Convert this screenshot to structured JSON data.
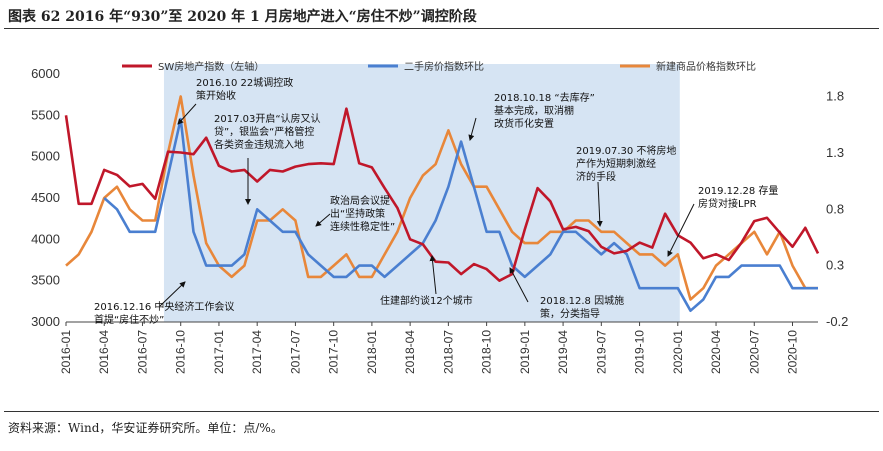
{
  "title": "图表 62 2016 年“930”至 2020 年 1 月房地产进入“房住不炒”调控阶段",
  "footer": "资料来源：Wind，华安证券研究所。单位：点/%。",
  "colors": {
    "sw": "#c0172a",
    "second": "#4a7fd0",
    "new": "#e8873a",
    "shade": "#d6e4f3"
  },
  "chart_data": {
    "type": "line",
    "x": [
      "2016-01",
      "2016-02",
      "2016-03",
      "2016-04",
      "2016-05",
      "2016-06",
      "2016-07",
      "2016-08",
      "2016-09",
      "2016-10",
      "2016-11",
      "2016-12",
      "2017-01",
      "2017-02",
      "2017-03",
      "2017-04",
      "2017-05",
      "2017-06",
      "2017-07",
      "2017-08",
      "2017-09",
      "2017-10",
      "2017-11",
      "2017-12",
      "2018-01",
      "2018-02",
      "2018-03",
      "2018-04",
      "2018-05",
      "2018-06",
      "2018-07",
      "2018-08",
      "2018-09",
      "2018-10",
      "2018-11",
      "2018-12",
      "2019-01",
      "2019-02",
      "2019-03",
      "2019-04",
      "2019-05",
      "2019-06",
      "2019-07",
      "2019-08",
      "2019-09",
      "2019-10",
      "2019-11",
      "2019-12",
      "2020-01",
      "2020-02",
      "2020-03",
      "2020-04",
      "2020-05",
      "2020-06",
      "2020-07",
      "2020-08",
      "2020-09",
      "2020-10",
      "2020-11",
      "2020-12"
    ],
    "x_tick_labels": [
      "2016-01",
      "2016-04",
      "2016-07",
      "2016-10",
      "2017-01",
      "2017-04",
      "2017-07",
      "2017-10",
      "2018-01",
      "2018-04",
      "2018-07",
      "2018-10",
      "2019-01",
      "2019-04",
      "2019-07",
      "2019-10",
      "2020-01",
      "2020-04",
      "2020-07",
      "2020-10"
    ],
    "y_left": {
      "min": 3000,
      "max": 6000,
      "ticks": [
        3000,
        3500,
        4000,
        4500,
        5000,
        5500,
        6000
      ]
    },
    "y_right": {
      "min": -0.2,
      "max": 2.0,
      "ticks": [
        "-0.2",
        "0.3",
        "0.8",
        "1.3",
        "1.8"
      ]
    },
    "shaded_period": [
      "2016-09",
      "2020-01"
    ],
    "legend_position": "top",
    "series": [
      {
        "name": "SW房地产指数（左轴）",
        "axis": "left",
        "color_key": "sw",
        "values": [
          5500,
          4430,
          4430,
          4840,
          4780,
          4640,
          4670,
          4490,
          5060,
          5050,
          5030,
          5230,
          4890,
          4820,
          4840,
          4700,
          4840,
          4820,
          4880,
          4910,
          4920,
          4910,
          5580,
          4920,
          4870,
          4620,
          4380,
          4000,
          3940,
          3730,
          3720,
          3580,
          3700,
          3640,
          3500,
          3580,
          4120,
          4620,
          4460,
          4120,
          4150,
          4100,
          3910,
          3830,
          3860,
          3960,
          3900,
          4310,
          4050,
          3960,
          3770,
          3820,
          3750,
          3960,
          4220,
          4260,
          4080,
          3910,
          4140,
          3830
        ]
      },
      {
        "name": "二手房价指数环比",
        "axis": "right",
        "color_key": "second",
        "values": [
          null,
          null,
          null,
          0.9,
          0.8,
          0.6,
          0.6,
          0.6,
          1.1,
          1.6,
          0.6,
          0.3,
          0.3,
          0.3,
          0.4,
          0.8,
          0.7,
          0.6,
          0.6,
          0.4,
          0.3,
          0.2,
          0.2,
          0.3,
          0.3,
          0.2,
          0.3,
          0.4,
          0.5,
          0.7,
          1.0,
          1.4,
          1.0,
          0.6,
          0.6,
          0.3,
          0.2,
          0.3,
          0.4,
          0.6,
          0.6,
          0.5,
          0.4,
          0.5,
          0.4,
          0.1,
          0.1,
          0.1,
          0.1,
          -0.1,
          0.0,
          0.2,
          0.2,
          0.3,
          0.3,
          0.3,
          0.3,
          0.1,
          0.1,
          0.1
        ]
      },
      {
        "name": "新建商品价格指数环比",
        "axis": "right",
        "color_key": "new",
        "values": [
          0.3,
          0.4,
          0.6,
          0.9,
          1.0,
          0.8,
          0.7,
          0.7,
          1.3,
          1.8,
          1.1,
          0.5,
          0.3,
          0.2,
          0.3,
          0.7,
          0.7,
          0.8,
          0.7,
          0.2,
          0.2,
          0.3,
          0.4,
          0.2,
          0.2,
          0.4,
          0.6,
          0.9,
          1.1,
          1.2,
          1.5,
          1.2,
          1.0,
          1.0,
          0.8,
          0.6,
          0.5,
          0.5,
          0.6,
          0.6,
          0.7,
          0.7,
          0.6,
          0.6,
          0.5,
          0.4,
          0.4,
          0.3,
          0.4,
          0.0,
          0.1,
          0.3,
          0.4,
          0.5,
          0.6,
          0.4,
          0.6,
          0.3,
          0.1,
          0.1
        ]
      }
    ],
    "annotations": [
      {
        "lines": [
          "2016.10 22城调控政",
          "策开始收"
        ]
      },
      {
        "lines": [
          "2017.03开启“认房又认",
          "贷”，银监会“严格管控",
          "各类资金违规流入地"
        ]
      },
      {
        "lines": [
          "政治局会议提",
          "出“坚持政策",
          "连续性稳定性”"
        ]
      },
      {
        "lines": [
          "2018.10.18 “去库存”",
          "基本完成，取消棚",
          "改货币化安置"
        ]
      },
      {
        "lines": [
          "2019.07.30 不将房地",
          "产作为短期刺激经",
          "济的手段"
        ]
      },
      {
        "lines": [
          "2019.12.28 存量",
          "房贷对接LPR"
        ]
      },
      {
        "lines": [
          "2016.12.16 中央经济工作会议",
          "首提“房住不炒”"
        ]
      },
      {
        "lines": [
          "住建部约谈12个城市"
        ]
      },
      {
        "lines": [
          "2018.12.8 因城施",
          "策，分类指导"
        ]
      }
    ]
  }
}
